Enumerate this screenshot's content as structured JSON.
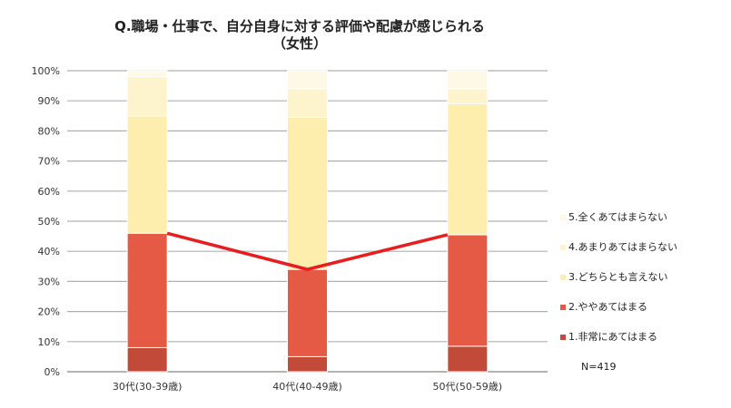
{
  "chart_data": {
    "type": "bar",
    "stacked": true,
    "title_lines": [
      "Q.職場・仕事で、自分自身に対する評価や配慮が感じられる",
      "（女性）"
    ],
    "categories": [
      "30代(30-39歳)",
      "40代(40-49歳)",
      "50代(50-59歳)"
    ],
    "series": [
      {
        "name": "1.非常にあてはまる",
        "color": "#c24a38",
        "values": [
          8,
          5,
          8.5
        ]
      },
      {
        "name": "2.ややあてはまる",
        "color": "#e55a45",
        "values": [
          38,
          29,
          37
        ]
      },
      {
        "name": "3.どちらとも言えない",
        "color": "#fdeeae",
        "values": [
          39,
          50.5,
          43.5
        ]
      },
      {
        "name": "4.あまりあてはまらない",
        "color": "#fdf3cc",
        "values": [
          13,
          9.5,
          5
        ]
      },
      {
        "name": "5.全くあてはまらない",
        "color": "#fef9e6",
        "values": [
          2,
          6,
          6
        ]
      }
    ],
    "line_overlay": {
      "color": "#e81e1e",
      "values": [
        46,
        34,
        45.5
      ]
    },
    "yticks": [
      "0%",
      "10%",
      "20%",
      "30%",
      "40%",
      "50%",
      "60%",
      "70%",
      "80%",
      "90%",
      "100%"
    ],
    "ylim": [
      0,
      100
    ],
    "grid": true,
    "legend_position": "right",
    "note": "N=419"
  }
}
